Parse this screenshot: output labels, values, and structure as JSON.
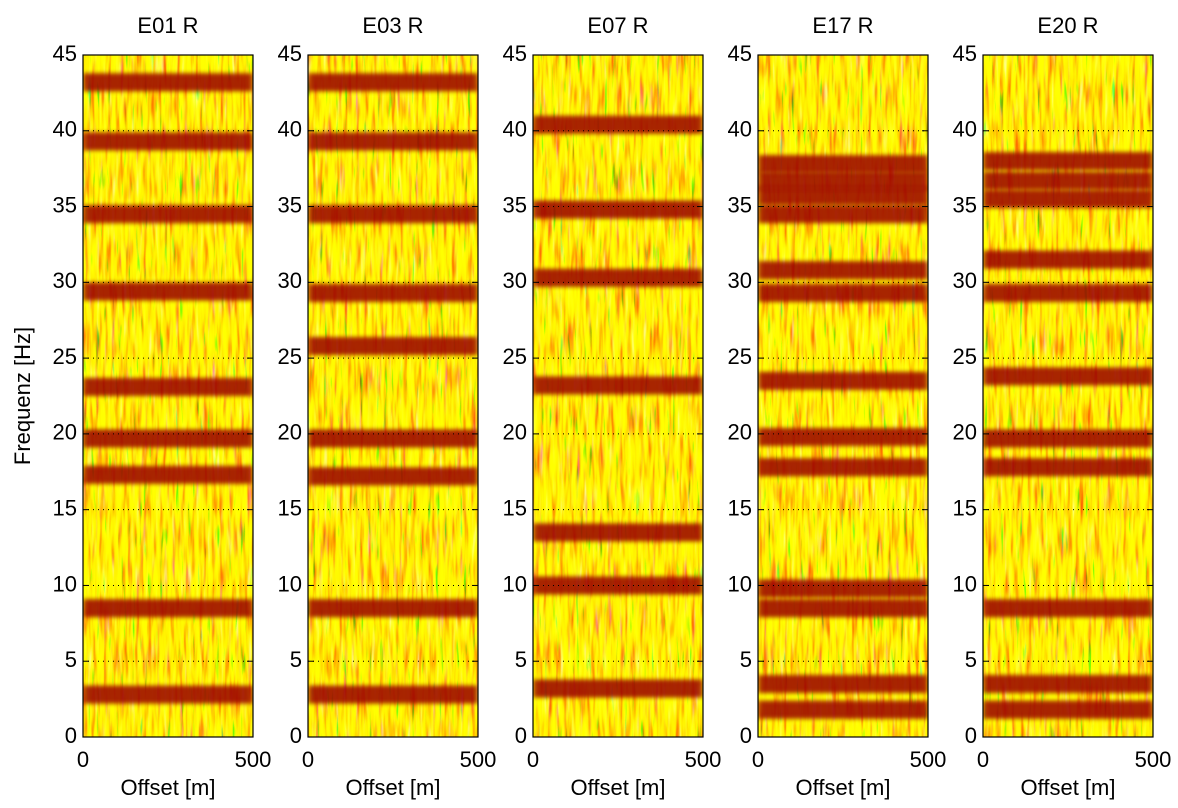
{
  "chart_data": [
    {
      "type": "heatmap",
      "title": "E01 R",
      "xlabel": "Offset [m]",
      "ylabel": "Frequenz [Hz]",
      "xlim": [
        0,
        500
      ],
      "ylim": [
        0,
        45
      ],
      "xticks": [
        0,
        500
      ],
      "yticks": [
        0,
        5,
        10,
        15,
        20,
        25,
        30,
        35,
        40,
        45
      ],
      "grid": true,
      "color": "#9a0000",
      "y": [
        2.8,
        8.5,
        17.3,
        19.7,
        23.1,
        29.4,
        34.5,
        39.3,
        43.2
      ]
    },
    {
      "type": "heatmap",
      "title": "E03 R",
      "xlabel": "Offset [m]",
      "xlim": [
        0,
        500
      ],
      "ylim": [
        0,
        45
      ],
      "xticks": [
        0,
        500
      ],
      "yticks": [
        0,
        5,
        10,
        15,
        20,
        25,
        30,
        35,
        40,
        45
      ],
      "grid": true,
      "color": "#9a0000",
      "y": [
        2.8,
        8.5,
        17.2,
        19.7,
        25.8,
        29.3,
        34.5,
        39.3,
        43.2
      ]
    },
    {
      "type": "heatmap",
      "title": "E07 R",
      "xlabel": "Offset [m]",
      "xlim": [
        0,
        500
      ],
      "ylim": [
        0,
        45
      ],
      "xticks": [
        0,
        500
      ],
      "yticks": [
        0,
        5,
        10,
        15,
        20,
        25,
        30,
        35,
        40,
        45
      ],
      "grid": true,
      "color": "#9a0000",
      "y": [
        3.2,
        10,
        13.5,
        23.2,
        30.3,
        34.8,
        40.4
      ]
    },
    {
      "type": "heatmap",
      "title": "E17 R",
      "xlabel": "Offset [m]",
      "xlim": [
        0,
        500
      ],
      "ylim": [
        0,
        45
      ],
      "xticks": [
        0,
        500
      ],
      "yticks": [
        0,
        5,
        10,
        15,
        20,
        25,
        30,
        35,
        40,
        45
      ],
      "grid": true,
      "color": "#9a0000",
      "y": [
        1.8,
        3.5,
        8.5,
        9.8,
        17.8,
        19.8,
        23.5,
        29.3,
        30.8,
        34.5,
        35.7,
        36.7,
        37.8
      ]
    },
    {
      "type": "heatmap",
      "title": "E20 R",
      "xlabel": "Offset [m]",
      "xlim": [
        0,
        500
      ],
      "ylim": [
        0,
        45
      ],
      "xticks": [
        0,
        500
      ],
      "yticks": [
        0,
        5,
        10,
        15,
        20,
        25,
        30,
        35,
        40,
        45
      ],
      "grid": true,
      "color": "#9a0000",
      "y": [
        1.8,
        3.5,
        8.5,
        17.8,
        19.7,
        23.8,
        29.3,
        31.5,
        35.5,
        36.7,
        38
      ]
    }
  ]
}
